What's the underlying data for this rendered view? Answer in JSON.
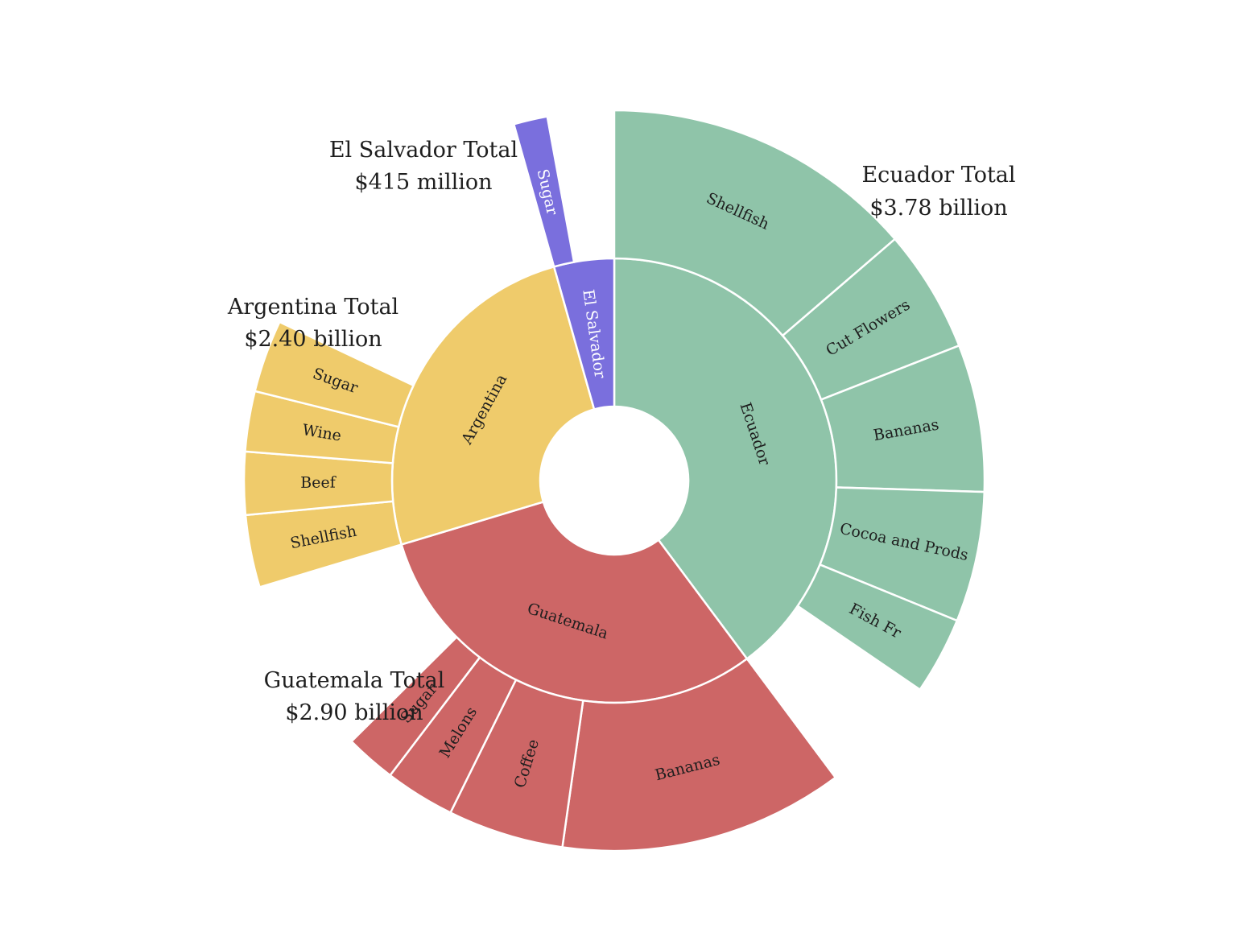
{
  "chart_data": {
    "type": "sunburst",
    "groups": [
      {
        "name": "Ecuador",
        "total_label": "Ecuador Total",
        "total_value_label": "$3.78 billion",
        "total": 3780,
        "color": "#8fc4a9",
        "items": [
          {
            "name": "Shellfish",
            "value": 1300
          },
          {
            "name": "Cut Flowers",
            "value": 510
          },
          {
            "name": "Bananas",
            "value": 610
          },
          {
            "name": "Cocoa and Prods",
            "value": 540
          },
          {
            "name": "Fish Fr",
            "value": 320
          }
        ]
      },
      {
        "name": "Guatemala",
        "total_label": "Guatemala Total",
        "total_value_label": "$2.90 billion",
        "total": 2900,
        "color": "#cd6666",
        "items": [
          {
            "name": "Bananas",
            "value": 1180
          },
          {
            "name": "Coffee",
            "value": 480
          },
          {
            "name": "Melons",
            "value": 290
          },
          {
            "name": "Sugar",
            "value": 210
          }
        ]
      },
      {
        "name": "Argentina",
        "total_label": "Argentina Total",
        "total_value_label": "$2.40 billion",
        "total": 2400,
        "color": "#efcb6b",
        "items": [
          {
            "name": "Shellfish",
            "value": 300
          },
          {
            "name": "Beef",
            "value": 260
          },
          {
            "name": "Wine",
            "value": 250
          },
          {
            "name": "Sugar",
            "value": 300
          }
        ]
      },
      {
        "name": "El Salvador",
        "total_label": "El Salvador Total",
        "total_value_label": "$415 million",
        "total": 415,
        "color": "#7a6fdd",
        "label_light": true,
        "items": [
          {
            "name": "Sugar",
            "value": 140
          }
        ]
      }
    ]
  }
}
